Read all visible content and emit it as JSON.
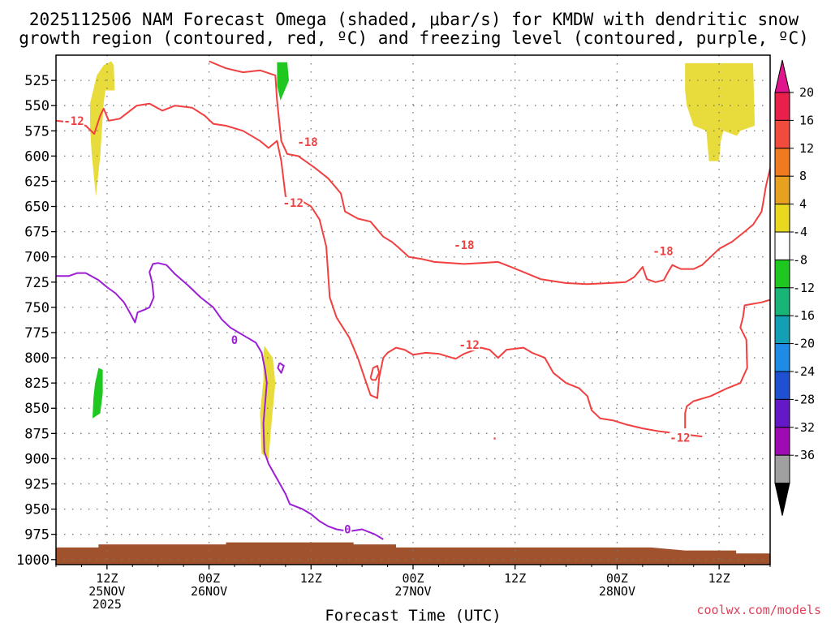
{
  "chart_data": {
    "type": "time-height cross section",
    "title_line1": "2025112506 NAM Forecast Omega (shaded, μbar/s) for KMDW with dendritic snow",
    "title_line2": "growth region (contoured, red, ºC) and freezing level (contoured, purple, ºC)",
    "xlabel": "Forecast Time (UTC)",
    "credit": "coolwx.com/models",
    "yaxis": {
      "label_unit": "hPa",
      "range": [
        500,
        1005
      ],
      "ticks": [
        "525",
        "550",
        "575",
        "600",
        "625",
        "650",
        "675",
        "700",
        "725",
        "750",
        "775",
        "800",
        "825",
        "850",
        "875",
        "900",
        "925",
        "950",
        "975",
        "1000"
      ]
    },
    "xaxis": {
      "range_hours": [
        0,
        84
      ],
      "major_ticks": [
        {
          "hour": 6,
          "line1": "12Z",
          "line2": "25NOV",
          "line3": "2025"
        },
        {
          "hour": 18,
          "line1": "00Z",
          "line2": "26NOV",
          "line3": ""
        },
        {
          "hour": 30,
          "line1": "12Z",
          "line2": "",
          "line3": ""
        },
        {
          "hour": 42,
          "line1": "00Z",
          "line2": "27NOV",
          "line3": ""
        },
        {
          "hour": 54,
          "line1": "12Z",
          "line2": "",
          "line3": ""
        },
        {
          "hour": 66,
          "line1": "00Z",
          "line2": "28NOV",
          "line3": ""
        },
        {
          "hour": 78,
          "line1": "12Z",
          "line2": "",
          "line3": ""
        }
      ]
    },
    "colorbar": {
      "labels": [
        "20",
        "16",
        "12",
        "8",
        "4",
        "-4",
        "-8",
        "-12",
        "-16",
        "-20",
        "-24",
        "-28",
        "-32",
        "-36"
      ],
      "colors": [
        "#e8204a",
        "#f04b3c",
        "#f07a20",
        "#e8a020",
        "#e8d820",
        "#ffffff",
        "#1ec81e",
        "#18b478",
        "#14a0b4",
        "#1e8ce6",
        "#2050d2",
        "#6418c8",
        "#a00ab4",
        "#a0a0a0"
      ],
      "over_color": "#e0148c",
      "under_color": "#000000"
    },
    "omega_shading": [
      {
        "name": "yellow-upper-left",
        "color": "#e8dc3c",
        "pts": [
          [
            4.0,
            548
          ],
          [
            4.8,
            520
          ],
          [
            5.6,
            510
          ],
          [
            6.5,
            506
          ],
          [
            6.8,
            510
          ],
          [
            6.9,
            535
          ],
          [
            5.8,
            535
          ],
          [
            5.6,
            548
          ],
          [
            5.2,
            600
          ],
          [
            4.7,
            640
          ],
          [
            4.2,
            598
          ],
          [
            4.0,
            570
          ]
        ]
      },
      {
        "name": "yellow-upper-right",
        "color": "#e8dc3c",
        "pts": [
          [
            74.0,
            508
          ],
          [
            82.0,
            508
          ],
          [
            82.2,
            570
          ],
          [
            80.5,
            575
          ],
          [
            80.1,
            580
          ],
          [
            78.5,
            575
          ],
          [
            78.2,
            585
          ],
          [
            78.0,
            605
          ],
          [
            76.8,
            605
          ],
          [
            76.5,
            575
          ],
          [
            75.0,
            570
          ],
          [
            74.2,
            550
          ],
          [
            74.0,
            535
          ]
        ]
      },
      {
        "name": "yellow-lower-mid",
        "color": "#e8dc3c",
        "pts": [
          [
            24.5,
            788
          ],
          [
            25.5,
            800
          ],
          [
            25.8,
            825
          ],
          [
            25.4,
            860
          ],
          [
            25.0,
            900
          ],
          [
            24.2,
            895
          ],
          [
            24.0,
            855
          ],
          [
            24.4,
            822
          ],
          [
            24.4,
            795
          ]
        ]
      },
      {
        "name": "green-upper",
        "color": "#1ec81e",
        "pts": [
          [
            26.0,
            507
          ],
          [
            27.2,
            507
          ],
          [
            27.4,
            525
          ],
          [
            26.4,
            545
          ],
          [
            26.0,
            530
          ]
        ]
      },
      {
        "name": "green-lower-left",
        "color": "#1ec81e",
        "pts": [
          [
            5.0,
            810
          ],
          [
            5.5,
            812
          ],
          [
            5.5,
            835
          ],
          [
            5.2,
            855
          ],
          [
            4.3,
            860
          ],
          [
            4.4,
            840
          ],
          [
            4.6,
            825
          ]
        ]
      }
    ],
    "terrain": {
      "color": "#a0522d",
      "surface": [
        [
          0,
          988
        ],
        [
          5,
          988
        ],
        [
          5,
          985
        ],
        [
          20,
          985
        ],
        [
          20,
          983
        ],
        [
          35,
          983
        ],
        [
          35,
          985
        ],
        [
          40,
          985
        ],
        [
          40,
          988
        ],
        [
          70,
          988
        ],
        [
          74,
          991
        ],
        [
          80,
          991
        ],
        [
          80,
          994
        ],
        [
          84,
          994
        ],
        [
          84,
          1006
        ],
        [
          0,
          1006
        ]
      ]
    },
    "dgz_contours": {
      "color": "#f04040",
      "lines": [
        [
          [
            0,
            565
          ],
          [
            2,
            567
          ],
          [
            3.5,
            570
          ],
          [
            4.5,
            578
          ],
          [
            5.2,
            560
          ],
          [
            5.6,
            553
          ],
          [
            6.2,
            565
          ],
          [
            7.5,
            563
          ],
          [
            9.5,
            550
          ],
          [
            11,
            548
          ],
          [
            12.5,
            555
          ],
          [
            14,
            550
          ],
          [
            16,
            552
          ],
          [
            17.5,
            560
          ],
          [
            18.5,
            568
          ],
          [
            20,
            570
          ],
          [
            22,
            575
          ],
          [
            24,
            585
          ],
          [
            25,
            592
          ],
          [
            26,
            585
          ],
          [
            26.5,
            605
          ],
          [
            27,
            640
          ],
          [
            27.8,
            648
          ],
          [
            29,
            645
          ],
          [
            30,
            650
          ],
          [
            31,
            663
          ],
          [
            31.8,
            690
          ],
          [
            32.2,
            740
          ],
          [
            33,
            760
          ],
          [
            34.5,
            780
          ],
          [
            35.5,
            800
          ],
          [
            36.3,
            820
          ],
          [
            37,
            837
          ],
          [
            37.8,
            840
          ],
          [
            38,
            820
          ],
          [
            38.5,
            800
          ],
          [
            39,
            795
          ],
          [
            40,
            790
          ],
          [
            41,
            792
          ],
          [
            42,
            797
          ],
          [
            43.5,
            795
          ],
          [
            45,
            796
          ],
          [
            47,
            801
          ],
          [
            48,
            796
          ],
          [
            50,
            790
          ],
          [
            51,
            792
          ],
          [
            52,
            800
          ],
          [
            53,
            792
          ],
          [
            55,
            790
          ],
          [
            56,
            795
          ],
          [
            57.5,
            800
          ],
          [
            58.5,
            815
          ],
          [
            60,
            825
          ],
          [
            61.5,
            830
          ],
          [
            62.5,
            838
          ],
          [
            63,
            852
          ],
          [
            64,
            860
          ],
          [
            65.5,
            862
          ],
          [
            67,
            866
          ],
          [
            69,
            870
          ],
          [
            71,
            873
          ],
          [
            73,
            875
          ],
          [
            76,
            878
          ]
        ],
        [
          [
            37,
            820
          ],
          [
            37.3,
            810
          ],
          [
            37.8,
            808
          ],
          [
            38,
            815
          ],
          [
            37.6,
            822
          ],
          [
            37.2,
            822
          ],
          [
            37,
            820
          ]
        ],
        [
          [
            18,
            506
          ],
          [
            20,
            513
          ],
          [
            22,
            517
          ],
          [
            24,
            515
          ],
          [
            25.8,
            520
          ],
          [
            26,
            545
          ],
          [
            26.5,
            585
          ],
          [
            27.2,
            598
          ],
          [
            28.5,
            600
          ],
          [
            30.5,
            612
          ],
          [
            32,
            622
          ],
          [
            33.5,
            637
          ],
          [
            34,
            655
          ],
          [
            35.5,
            662
          ],
          [
            37,
            665
          ],
          [
            38.5,
            680
          ],
          [
            39.5,
            685
          ],
          [
            40.2,
            690
          ],
          [
            41.5,
            700
          ],
          [
            43,
            702
          ],
          [
            44.5,
            705
          ],
          [
            48,
            707
          ],
          [
            50,
            706
          ],
          [
            52,
            705
          ],
          [
            53.5,
            710
          ],
          [
            55,
            715
          ],
          [
            57,
            722
          ],
          [
            60,
            726
          ],
          [
            62.5,
            727
          ],
          [
            65,
            726
          ],
          [
            67,
            725
          ],
          [
            68,
            720
          ],
          [
            69,
            710
          ],
          [
            69.5,
            722
          ],
          [
            70.5,
            725
          ],
          [
            71.5,
            723
          ],
          [
            72,
            715
          ],
          [
            72.5,
            708
          ],
          [
            73.5,
            712
          ],
          [
            75,
            712
          ],
          [
            76,
            708
          ],
          [
            77,
            700
          ],
          [
            78,
            692
          ],
          [
            79.5,
            685
          ],
          [
            81,
            675
          ],
          [
            82,
            668
          ],
          [
            83,
            655
          ],
          [
            83.5,
            630
          ],
          [
            84,
            612
          ],
          [
            85,
            608
          ]
        ],
        [
          [
            74,
            870
          ],
          [
            74,
            855
          ],
          [
            74.2,
            848
          ],
          [
            75,
            843
          ],
          [
            77,
            838
          ],
          [
            79,
            830
          ],
          [
            80.5,
            825
          ],
          [
            81.3,
            810
          ],
          [
            81.2,
            782
          ],
          [
            80.5,
            770
          ],
          [
            80.8,
            760
          ],
          [
            81,
            748
          ],
          [
            83,
            745
          ],
          [
            85,
            740
          ]
        ]
      ]
    },
    "freezing_contours": {
      "color": "#9b1fd4",
      "lines": [
        [
          [
            0,
            719
          ],
          [
            1.5,
            719
          ],
          [
            2.5,
            716
          ],
          [
            3.5,
            716
          ],
          [
            5,
            723
          ],
          [
            6,
            730
          ],
          [
            7,
            736
          ],
          [
            8,
            745
          ],
          [
            8.8,
            757
          ],
          [
            9.3,
            765
          ],
          [
            9.6,
            755
          ],
          [
            10.5,
            752
          ],
          [
            11,
            750
          ],
          [
            11.5,
            740
          ],
          [
            11.3,
            725
          ],
          [
            11,
            715
          ],
          [
            11.4,
            707
          ],
          [
            12,
            706
          ],
          [
            13,
            708
          ],
          [
            14,
            717
          ],
          [
            15.5,
            728
          ],
          [
            17,
            740
          ],
          [
            18.5,
            750
          ],
          [
            19.5,
            762
          ],
          [
            20.5,
            770
          ],
          [
            21.5,
            775
          ],
          [
            22.5,
            780
          ],
          [
            23.5,
            785
          ],
          [
            24.2,
            795
          ],
          [
            24.6,
            812
          ],
          [
            24.8,
            825
          ],
          [
            24.6,
            845
          ],
          [
            24.4,
            865
          ],
          [
            24.5,
            893
          ],
          [
            25,
            905
          ],
          [
            26,
            920
          ],
          [
            27,
            935
          ],
          [
            27.5,
            945
          ],
          [
            29,
            950
          ],
          [
            30,
            955
          ],
          [
            31,
            962
          ],
          [
            32,
            967
          ],
          [
            33,
            970
          ],
          [
            34.5,
            972
          ],
          [
            36,
            970
          ],
          [
            37.5,
            975
          ],
          [
            38.5,
            980
          ]
        ],
        [
          [
            26.3,
            805
          ],
          [
            26.8,
            808
          ],
          [
            26.5,
            815
          ],
          [
            26.1,
            810
          ],
          [
            26.3,
            805
          ]
        ]
      ]
    },
    "contour_labels": [
      {
        "text": "-12",
        "color": "#f04040",
        "h": 2.1,
        "p": 566
      },
      {
        "text": "-18",
        "color": "#f04040",
        "h": 29.6,
        "p": 587
      },
      {
        "text": "-12",
        "color": "#f04040",
        "h": 27.9,
        "p": 647
      },
      {
        "text": "-18",
        "color": "#f04040",
        "h": 48.0,
        "p": 689
      },
      {
        "text": "-18",
        "color": "#f04040",
        "h": 71.4,
        "p": 695
      },
      {
        "text": "-12",
        "color": "#f04040",
        "h": 48.6,
        "p": 788
      },
      {
        "text": "-12",
        "color": "#f04040",
        "h": 73.4,
        "p": 880
      },
      {
        "text": "0",
        "color": "#9b1fd4",
        "h": 21.0,
        "p": 783
      },
      {
        "text": "0",
        "color": "#9b1fd4",
        "h": 34.3,
        "p": 971
      }
    ]
  }
}
